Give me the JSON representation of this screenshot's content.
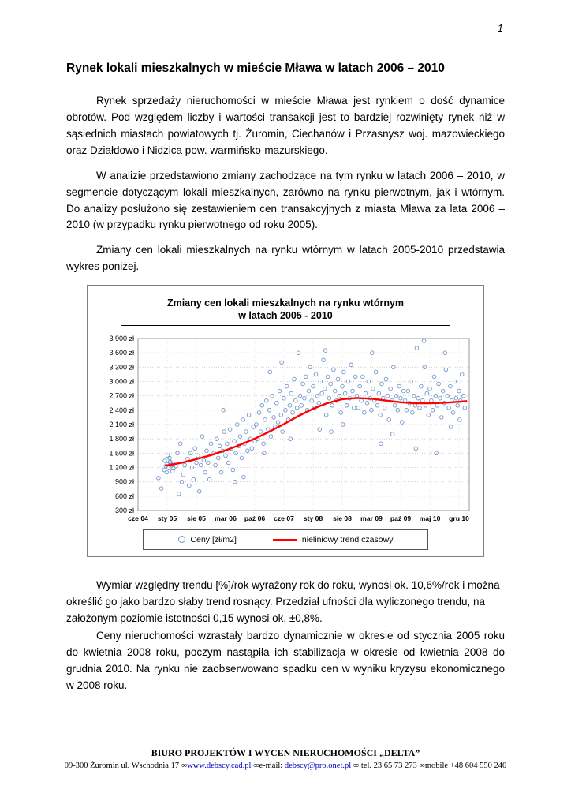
{
  "page": {
    "number": "1"
  },
  "title": "Rynek lokali mieszkalnych w mieście Mława w latach 2006 – 2010",
  "paragraphs": {
    "p1": "Rynek sprzedaży nieruchomości w mieście Mława jest rynkiem o dość dynamice obrotów. Pod względem liczby i wartości transakcji jest to bardziej rozwinięty rynek niż w sąsiednich miastach powiatowych tj. Żuromin, Ciechanów i Przasnysz woj. mazowieckiego oraz Działdowo i Nidzica pow. warmińsko-mazurskiego.",
    "p2": "W analizie przedstawiono zmiany zachodzące na tym rynku w latach 2006 – 2010, w segmencie dotyczącym lokali mieszkalnych, zarówno na rynku pierwotnym, jak i wtórnym. Do analizy posłużono się zestawieniem cen transakcyjnych z miasta Mława za lata 2006 – 2010 (w przypadku rynku pierwotnego od roku 2005).",
    "p3": "Zmiany cen lokali mieszkalnych na rynku wtórnym w latach 2005-2010 przedstawia wykres poniżej.",
    "p4": "Wymiar względny trendu [%]/rok wyrażony rok do roku, wynosi ok. 10,6%/rok i można określić go jako bardzo słaby trend rosnący. Przedział ufności dla wyliczonego trendu, na założonym poziomie istotności 0,15 wynosi ok. ±0,8%.",
    "p5": "Ceny nieruchomości wzrastały bardzo dynamicznie w okresie od stycznia 2005 roku do kwietnia 2008 roku, poczym nastąpiła ich stabilizacja w okresie od kwietnia 2008 do grudnia 2010. Na rynku nie zaobserwowano spadku cen w wyniku kryzysu ekonomicznego w 2008 roku."
  },
  "chart_data": {
    "type": "scatter",
    "title": "Zmiany cen lokali mieszkalnych na rynku wtórnym w latach 2005 - 2010",
    "title_lines": [
      "Zmiany cen lokali mieszkalnych na rynku wtórnym",
      "w latach 2005 - 2010"
    ],
    "xlabel": "",
    "ylabel": "",
    "xlim": [
      0,
      11.35
    ],
    "ylim": [
      300,
      3900
    ],
    "grid": true,
    "legend_position": "bottom",
    "x_tick_labels": [
      "cze 04",
      "sty 05",
      "sie 05",
      "mar 06",
      "paź 06",
      "cze 07",
      "sty 08",
      "sie 08",
      "mar 09",
      "paź 09",
      "maj 10",
      "gru 10"
    ],
    "y_ticks": [
      {
        "v": 3900,
        "label": "3 900 zł"
      },
      {
        "v": 3600,
        "label": "3 600 zł"
      },
      {
        "v": 3300,
        "label": "3 300 zł"
      },
      {
        "v": 3000,
        "label": "3 000 zł"
      },
      {
        "v": 2700,
        "label": "2 700 zł"
      },
      {
        "v": 2400,
        "label": "2 400 zł"
      },
      {
        "v": 2100,
        "label": "2 100 zł"
      },
      {
        "v": 1800,
        "label": "1 800 zł"
      },
      {
        "v": 1500,
        "label": "1 500 zł"
      },
      {
        "v": 1200,
        "label": "1 200 zł"
      },
      {
        "v": 900,
        "label": "900 zł"
      },
      {
        "v": 600,
        "label": "600 zł"
      },
      {
        "v": 300,
        "label": "300 zł"
      }
    ],
    "colors": {
      "scatter": "#7396c8",
      "trend": "#ff0000"
    },
    "legend": [
      {
        "label": "Ceny [zł/m2]",
        "marker": "circle"
      },
      {
        "label": "nieliniowy trend czasowy",
        "marker": "line"
      }
    ],
    "series": [
      {
        "name": "Ceny [zł/m2]",
        "type": "scatter",
        "points": [
          [
            0.95,
            1230
          ],
          [
            1.0,
            1260
          ],
          [
            1.05,
            1190
          ],
          [
            1.1,
            1320
          ],
          [
            0.9,
            1150
          ],
          [
            1.15,
            1250
          ],
          [
            1.2,
            1280
          ],
          [
            0.98,
            1100
          ],
          [
            1.08,
            1400
          ],
          [
            1.22,
            1180
          ],
          [
            0.92,
            1340
          ],
          [
            1.3,
            1230
          ],
          [
            1.18,
            1120
          ],
          [
            1.02,
            1450
          ],
          [
            1.12,
            1300
          ],
          [
            0.7,
            980
          ],
          [
            0.8,
            760
          ],
          [
            1.4,
            650
          ],
          [
            1.5,
            900
          ],
          [
            1.35,
            1500
          ],
          [
            1.45,
            1700
          ],
          [
            1.6,
            1250
          ],
          [
            1.55,
            1050
          ],
          [
            1.7,
            1380
          ],
          [
            1.75,
            820
          ],
          [
            1.8,
            1500
          ],
          [
            1.85,
            1200
          ],
          [
            1.9,
            950
          ],
          [
            1.95,
            1600
          ],
          [
            2.0,
            1300
          ],
          [
            2.05,
            1450
          ],
          [
            2.1,
            700
          ],
          [
            2.15,
            1250
          ],
          [
            2.2,
            1850
          ],
          [
            2.25,
            1350
          ],
          [
            2.3,
            1100
          ],
          [
            2.35,
            1550
          ],
          [
            2.4,
            1300
          ],
          [
            2.45,
            950
          ],
          [
            2.5,
            1700
          ],
          [
            2.6,
            1500
          ],
          [
            2.65,
            1250
          ],
          [
            2.7,
            1800
          ],
          [
            2.75,
            1400
          ],
          [
            2.8,
            1650
          ],
          [
            2.85,
            1100
          ],
          [
            2.9,
            1550
          ],
          [
            2.95,
            1950
          ],
          [
            3.0,
            1450
          ],
          [
            3.05,
            1700
          ],
          [
            3.1,
            1300
          ],
          [
            3.15,
            2000
          ],
          [
            3.2,
            1600
          ],
          [
            3.25,
            1150
          ],
          [
            3.3,
            1750
          ],
          [
            3.35,
            1500
          ],
          [
            3.4,
            2100
          ],
          [
            3.45,
            1650
          ],
          [
            3.5,
            1850
          ],
          [
            3.55,
            1400
          ],
          [
            3.6,
            2200
          ],
          [
            3.65,
            1700
          ],
          [
            3.7,
            1950
          ],
          [
            3.75,
            1550
          ],
          [
            3.8,
            2300
          ],
          [
            3.85,
            1800
          ],
          [
            3.9,
            1600
          ],
          [
            3.95,
            2050
          ],
          [
            4.0,
            1750
          ],
          [
            3.32,
            900
          ],
          [
            3.62,
            1000
          ],
          [
            2.92,
            2400
          ],
          [
            4.05,
            2100
          ],
          [
            4.1,
            1800
          ],
          [
            4.15,
            2350
          ],
          [
            4.2,
            1950
          ],
          [
            4.25,
            2500
          ],
          [
            4.3,
            1700
          ],
          [
            4.35,
            2200
          ],
          [
            4.4,
            2600
          ],
          [
            4.45,
            2000
          ],
          [
            4.5,
            2400
          ],
          [
            4.55,
            1850
          ],
          [
            4.6,
            2700
          ],
          [
            4.65,
            2250
          ],
          [
            4.7,
            2050
          ],
          [
            4.75,
            2550
          ],
          [
            4.8,
            2150
          ],
          [
            4.85,
            2800
          ],
          [
            4.9,
            2300
          ],
          [
            4.95,
            1950
          ],
          [
            5.0,
            2650
          ],
          [
            5.05,
            2400
          ],
          [
            5.1,
            2900
          ],
          [
            5.15,
            2200
          ],
          [
            5.2,
            2500
          ],
          [
            5.25,
            2750
          ],
          [
            5.3,
            2350
          ],
          [
            5.35,
            3050
          ],
          [
            5.4,
            2600
          ],
          [
            5.45,
            2450
          ],
          [
            5.5,
            3600
          ],
          [
            4.52,
            3200
          ],
          [
            4.32,
            1500
          ],
          [
            5.22,
            1800
          ],
          [
            4.92,
            3400
          ],
          [
            5.55,
            2700
          ],
          [
            5.6,
            2500
          ],
          [
            5.65,
            2950
          ],
          [
            5.7,
            2650
          ],
          [
            5.75,
            3100
          ],
          [
            5.8,
            2400
          ],
          [
            5.85,
            2800
          ],
          [
            5.9,
            3300
          ],
          [
            5.95,
            2600
          ],
          [
            6.0,
            2900
          ],
          [
            6.05,
            2450
          ],
          [
            6.1,
            3150
          ],
          [
            6.15,
            2700
          ],
          [
            6.2,
            2550
          ],
          [
            6.25,
            3000
          ],
          [
            6.3,
            2750
          ],
          [
            6.35,
            3450
          ],
          [
            6.4,
            2850
          ],
          [
            6.45,
            2300
          ],
          [
            6.5,
            3100
          ],
          [
            6.55,
            2650
          ],
          [
            6.6,
            2950
          ],
          [
            6.65,
            2500
          ],
          [
            6.7,
            3250
          ],
          [
            6.75,
            2800
          ],
          [
            6.8,
            2600
          ],
          [
            6.85,
            3050
          ],
          [
            6.9,
            2700
          ],
          [
            6.95,
            2350
          ],
          [
            7.0,
            2900
          ],
          [
            7.05,
            3200
          ],
          [
            7.1,
            2750
          ],
          [
            7.15,
            2500
          ],
          [
            7.2,
            3000
          ],
          [
            7.25,
            2650
          ],
          [
            7.3,
            3350
          ],
          [
            7.35,
            2800
          ],
          [
            7.4,
            2450
          ],
          [
            7.45,
            3100
          ],
          [
            6.22,
            2000
          ],
          [
            6.62,
            1950
          ],
          [
            7.02,
            2100
          ],
          [
            6.42,
            3650
          ],
          [
            7.5,
            2700
          ],
          [
            7.55,
            2450
          ],
          [
            7.6,
            2900
          ],
          [
            7.65,
            2600
          ],
          [
            7.7,
            3100
          ],
          [
            7.75,
            2350
          ],
          [
            7.8,
            2750
          ],
          [
            7.85,
            2550
          ],
          [
            7.9,
            3000
          ],
          [
            7.95,
            2650
          ],
          [
            8.0,
            2400
          ],
          [
            8.05,
            2850
          ],
          [
            8.1,
            2600
          ],
          [
            8.15,
            3200
          ],
          [
            8.2,
            2500
          ],
          [
            8.25,
            2750
          ],
          [
            8.3,
            2300
          ],
          [
            8.35,
            2950
          ],
          [
            8.4,
            2650
          ],
          [
            8.45,
            2450
          ],
          [
            8.5,
            3050
          ],
          [
            8.55,
            2700
          ],
          [
            8.6,
            2200
          ],
          [
            8.65,
            2850
          ],
          [
            8.7,
            2600
          ],
          [
            8.75,
            3300
          ],
          [
            8.8,
            2500
          ],
          [
            8.85,
            2700
          ],
          [
            8.9,
            2400
          ],
          [
            8.95,
            2900
          ],
          [
            9.0,
            2650
          ],
          [
            9.05,
            2150
          ],
          [
            9.1,
            2800
          ],
          [
            8.32,
            1700
          ],
          [
            8.72,
            1900
          ],
          [
            8.02,
            3600
          ],
          [
            9.15,
            2600
          ],
          [
            9.2,
            2400
          ],
          [
            9.25,
            2800
          ],
          [
            9.3,
            2550
          ],
          [
            9.35,
            3000
          ],
          [
            9.4,
            2350
          ],
          [
            9.45,
            2700
          ],
          [
            9.5,
            2500
          ],
          [
            9.55,
            3700
          ],
          [
            9.6,
            2650
          ],
          [
            9.65,
            2450
          ],
          [
            9.7,
            2900
          ],
          [
            9.75,
            2600
          ],
          [
            9.8,
            3850
          ],
          [
            9.85,
            2500
          ],
          [
            9.9,
            2750
          ],
          [
            9.95,
            2300
          ],
          [
            10.0,
            2850
          ],
          [
            10.05,
            2600
          ],
          [
            10.1,
            2400
          ],
          [
            10.15,
            3100
          ],
          [
            10.2,
            2700
          ],
          [
            10.25,
            2500
          ],
          [
            10.3,
            2950
          ],
          [
            10.35,
            2650
          ],
          [
            10.4,
            2250
          ],
          [
            10.45,
            2800
          ],
          [
            10.5,
            2550
          ],
          [
            10.55,
            3250
          ],
          [
            10.6,
            2700
          ],
          [
            10.65,
            2450
          ],
          [
            10.7,
            2900
          ],
          [
            10.75,
            2600
          ],
          [
            10.8,
            2350
          ],
          [
            10.85,
            3000
          ],
          [
            10.9,
            2650
          ],
          [
            10.95,
            2500
          ],
          [
            11.0,
            2800
          ],
          [
            11.05,
            2600
          ],
          [
            11.1,
            3150
          ],
          [
            11.15,
            2700
          ],
          [
            11.2,
            2450
          ],
          [
            9.52,
            1600
          ],
          [
            10.22,
            1500
          ],
          [
            10.72,
            2050
          ],
          [
            11.02,
            2200
          ],
          [
            9.82,
            3300
          ],
          [
            10.52,
            3600
          ]
        ]
      },
      {
        "name": "nieliniowy trend czasowy",
        "type": "line",
        "points": [
          [
            0.95,
            1240
          ],
          [
            1.5,
            1300
          ],
          [
            2,
            1375
          ],
          [
            2.5,
            1460
          ],
          [
            3,
            1560
          ],
          [
            3.5,
            1675
          ],
          [
            4,
            1805
          ],
          [
            4.5,
            1950
          ],
          [
            5,
            2110
          ],
          [
            5.5,
            2280
          ],
          [
            6,
            2430
          ],
          [
            6.5,
            2550
          ],
          [
            7,
            2630
          ],
          [
            7.5,
            2655
          ],
          [
            8,
            2640
          ],
          [
            8.5,
            2600
          ],
          [
            9,
            2565
          ],
          [
            9.5,
            2545
          ],
          [
            10,
            2545
          ],
          [
            10.5,
            2555
          ],
          [
            11,
            2575
          ],
          [
            11.25,
            2590
          ]
        ]
      }
    ]
  },
  "footer": {
    "line1": "BIURO PROJEKTÓW I WYCEN NIERUCHOMOŚCI „DELTA”",
    "line2": {
      "prefix": "09-300 Żuromin ul. Wschodnia 17 ∞",
      "link1": "www.debscy.cad.pl",
      "mid": " ∞e-mail: ",
      "link2": "debscy@pro.onet.pl",
      "suffix": " ∞ tel. 23 65 73 273 ∞mobile +48 604 550 240"
    }
  }
}
